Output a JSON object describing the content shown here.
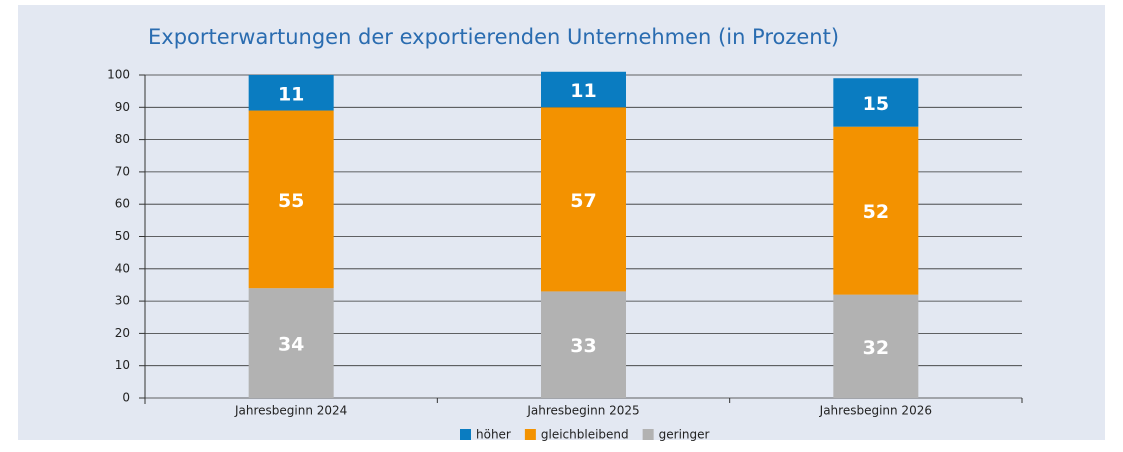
{
  "chart_data": {
    "type": "stacked_bar",
    "title": "Exporterwartungen der exportierenden Unternehmen (in Prozent)",
    "categories": [
      "Jahresbeginn 2024",
      "Jahresbeginn 2025",
      "Jahresbeginn 2026"
    ],
    "series": [
      {
        "name": "geringer",
        "color": "#b2b2b2",
        "values": [
          34,
          33,
          32
        ]
      },
      {
        "name": "gleichbleibend",
        "color": "#f39200",
        "values": [
          55,
          57,
          52
        ]
      },
      {
        "name": "höher",
        "color": "#0a7cc1",
        "values": [
          11,
          11,
          15
        ]
      }
    ],
    "legend_order": [
      "höher",
      "gleichbleibend",
      "geringer"
    ],
    "ylim": [
      0,
      100
    ],
    "yticks": [
      0,
      10,
      20,
      30,
      40,
      50,
      60,
      70,
      80,
      90,
      100
    ],
    "grid": true
  }
}
